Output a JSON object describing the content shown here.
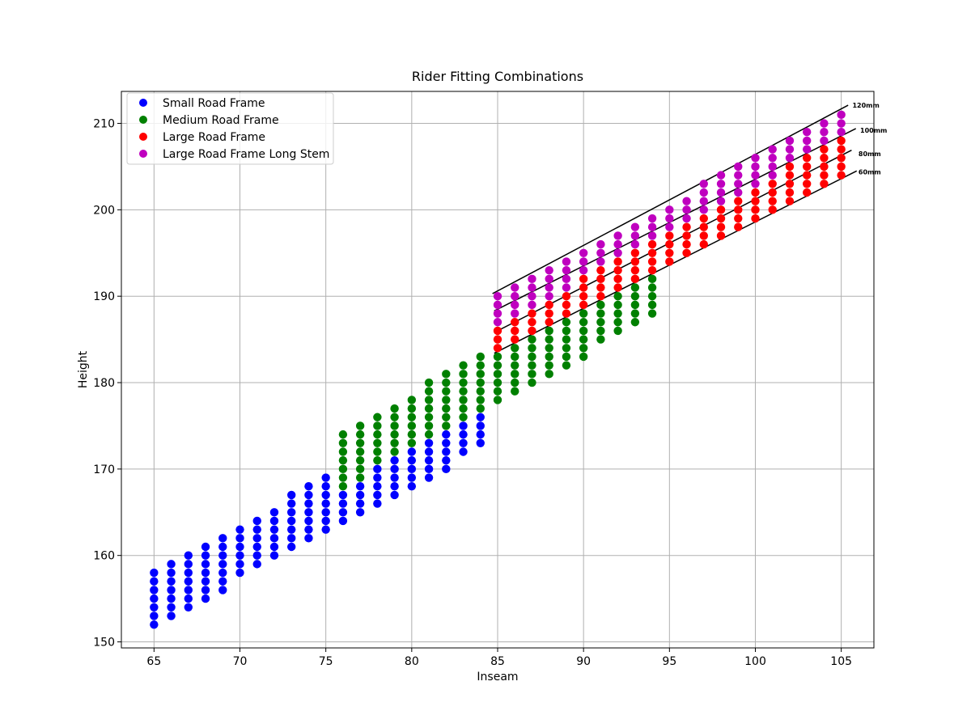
{
  "chart_data": {
    "type": "scatter",
    "title": "Rider Fitting Combinations",
    "xlabel": "Inseam",
    "ylabel": "Height",
    "xlim": [
      63.1,
      106.9
    ],
    "ylim": [
      149.3,
      213.7
    ],
    "xticks": [
      65,
      70,
      75,
      80,
      85,
      90,
      95,
      100,
      105
    ],
    "yticks": [
      150,
      160,
      170,
      180,
      190,
      200,
      210
    ],
    "grid": true,
    "legend_position": "upper left",
    "series": [
      {
        "name": "Small Road Frame",
        "color": "#0000ff",
        "columns": [
          {
            "x": 65,
            "y_min": 152,
            "y_max": 158
          },
          {
            "x": 66,
            "y_min": 153,
            "y_max": 159
          },
          {
            "x": 67,
            "y_min": 154,
            "y_max": 160
          },
          {
            "x": 68,
            "y_min": 155,
            "y_max": 161
          },
          {
            "x": 69,
            "y_min": 156,
            "y_max": 162
          },
          {
            "x": 70,
            "y_min": 158,
            "y_max": 163
          },
          {
            "x": 71,
            "y_min": 159,
            "y_max": 164
          },
          {
            "x": 72,
            "y_min": 160,
            "y_max": 165
          },
          {
            "x": 73,
            "y_min": 161,
            "y_max": 167
          },
          {
            "x": 74,
            "y_min": 162,
            "y_max": 168
          },
          {
            "x": 75,
            "y_min": 163,
            "y_max": 169
          },
          {
            "x": 76,
            "y_min": 164,
            "y_max": 167
          },
          {
            "x": 77,
            "y_min": 165,
            "y_max": 168
          },
          {
            "x": 78,
            "y_min": 166,
            "y_max": 170
          },
          {
            "x": 79,
            "y_min": 167,
            "y_max": 171
          },
          {
            "x": 80,
            "y_min": 168,
            "y_max": 172
          },
          {
            "x": 81,
            "y_min": 169,
            "y_max": 173
          },
          {
            "x": 82,
            "y_min": 170,
            "y_max": 174
          },
          {
            "x": 83,
            "y_min": 172,
            "y_max": 175
          },
          {
            "x": 84,
            "y_min": 173,
            "y_max": 176
          }
        ]
      },
      {
        "name": "Medium Road Frame",
        "color": "#008000",
        "columns": [
          {
            "x": 76,
            "y_min": 168,
            "y_max": 174
          },
          {
            "x": 77,
            "y_min": 169,
            "y_max": 175
          },
          {
            "x": 78,
            "y_min": 171,
            "y_max": 176
          },
          {
            "x": 79,
            "y_min": 172,
            "y_max": 177
          },
          {
            "x": 80,
            "y_min": 173,
            "y_max": 178
          },
          {
            "x": 81,
            "y_min": 174,
            "y_max": 180
          },
          {
            "x": 82,
            "y_min": 175,
            "y_max": 181
          },
          {
            "x": 83,
            "y_min": 176,
            "y_max": 182
          },
          {
            "x": 84,
            "y_min": 177,
            "y_max": 183
          },
          {
            "x": 85,
            "y_min": 178,
            "y_max": 183
          },
          {
            "x": 86,
            "y_min": 179,
            "y_max": 184
          },
          {
            "x": 87,
            "y_min": 180,
            "y_max": 185
          },
          {
            "x": 88,
            "y_min": 181,
            "y_max": 186
          },
          {
            "x": 89,
            "y_min": 182,
            "y_max": 187
          },
          {
            "x": 90,
            "y_min": 183,
            "y_max": 188
          },
          {
            "x": 91,
            "y_min": 185,
            "y_max": 189
          },
          {
            "x": 92,
            "y_min": 186,
            "y_max": 190
          },
          {
            "x": 93,
            "y_min": 187,
            "y_max": 191
          },
          {
            "x": 94,
            "y_min": 188,
            "y_max": 192
          }
        ]
      },
      {
        "name": "Large Road Frame",
        "color": "#ff0000",
        "columns": [
          {
            "x": 85,
            "y_min": 184,
            "y_max": 186
          },
          {
            "x": 86,
            "y_min": 185,
            "y_max": 187
          },
          {
            "x": 87,
            "y_min": 186,
            "y_max": 188
          },
          {
            "x": 88,
            "y_min": 187,
            "y_max": 189
          },
          {
            "x": 89,
            "y_min": 188,
            "y_max": 190
          },
          {
            "x": 90,
            "y_min": 189,
            "y_max": 192
          },
          {
            "x": 91,
            "y_min": 190,
            "y_max": 193
          },
          {
            "x": 92,
            "y_min": 191,
            "y_max": 194
          },
          {
            "x": 93,
            "y_min": 192,
            "y_max": 195
          },
          {
            "x": 94,
            "y_min": 193,
            "y_max": 196
          },
          {
            "x": 95,
            "y_min": 194,
            "y_max": 197
          },
          {
            "x": 96,
            "y_min": 195,
            "y_max": 198
          },
          {
            "x": 97,
            "y_min": 196,
            "y_max": 199
          },
          {
            "x": 98,
            "y_min": 197,
            "y_max": 200
          },
          {
            "x": 99,
            "y_min": 198,
            "y_max": 201
          },
          {
            "x": 100,
            "y_min": 199,
            "y_max": 202
          },
          {
            "x": 101,
            "y_min": 200,
            "y_max": 203
          },
          {
            "x": 102,
            "y_min": 201,
            "y_max": 205
          },
          {
            "x": 103,
            "y_min": 202,
            "y_max": 206
          },
          {
            "x": 104,
            "y_min": 203,
            "y_max": 207
          },
          {
            "x": 105,
            "y_min": 204,
            "y_max": 208
          }
        ]
      },
      {
        "name": "Large Road Frame Long Stem",
        "color": "#bf00bf",
        "columns": [
          {
            "x": 85,
            "y_min": 187,
            "y_max": 190
          },
          {
            "x": 86,
            "y_min": 188,
            "y_max": 191
          },
          {
            "x": 87,
            "y_min": 189,
            "y_max": 192
          },
          {
            "x": 88,
            "y_min": 190,
            "y_max": 193
          },
          {
            "x": 89,
            "y_min": 191,
            "y_max": 194
          },
          {
            "x": 90,
            "y_min": 193,
            "y_max": 195
          },
          {
            "x": 91,
            "y_min": 194,
            "y_max": 196
          },
          {
            "x": 92,
            "y_min": 195,
            "y_max": 197
          },
          {
            "x": 93,
            "y_min": 196,
            "y_max": 198
          },
          {
            "x": 94,
            "y_min": 197,
            "y_max": 199
          },
          {
            "x": 95,
            "y_min": 198,
            "y_max": 200
          },
          {
            "x": 96,
            "y_min": 199,
            "y_max": 201
          },
          {
            "x": 97,
            "y_min": 200,
            "y_max": 203
          },
          {
            "x": 98,
            "y_min": 201,
            "y_max": 204
          },
          {
            "x": 99,
            "y_min": 202,
            "y_max": 205
          },
          {
            "x": 100,
            "y_min": 203,
            "y_max": 206
          },
          {
            "x": 101,
            "y_min": 204,
            "y_max": 207
          },
          {
            "x": 102,
            "y_min": 206,
            "y_max": 208
          },
          {
            "x": 103,
            "y_min": 207,
            "y_max": 209
          },
          {
            "x": 104,
            "y_min": 208,
            "y_max": 210
          },
          {
            "x": 105,
            "y_min": 209,
            "y_max": 211
          }
        ]
      }
    ],
    "stem_lines": [
      {
        "label": "120mm",
        "x1": 84.7,
        "y1": 190.3,
        "x2": 105.4,
        "y2": 212.1,
        "label_x": 105.65,
        "label_y": 212.1
      },
      {
        "label": "100mm",
        "x1": 84.8,
        "y1": 188.3,
        "x2": 105.85,
        "y2": 209.4,
        "label_x": 106.1,
        "label_y": 209.2
      },
      {
        "label": "80mm",
        "x1": 84.8,
        "y1": 185.8,
        "x2": 105.6,
        "y2": 206.9,
        "label_x": 106.0,
        "label_y": 206.5
      },
      {
        "label": "60mm",
        "x1": 84.8,
        "y1": 183.4,
        "x2": 105.9,
        "y2": 204.5,
        "label_x": 106.0,
        "label_y": 204.4
      }
    ]
  }
}
